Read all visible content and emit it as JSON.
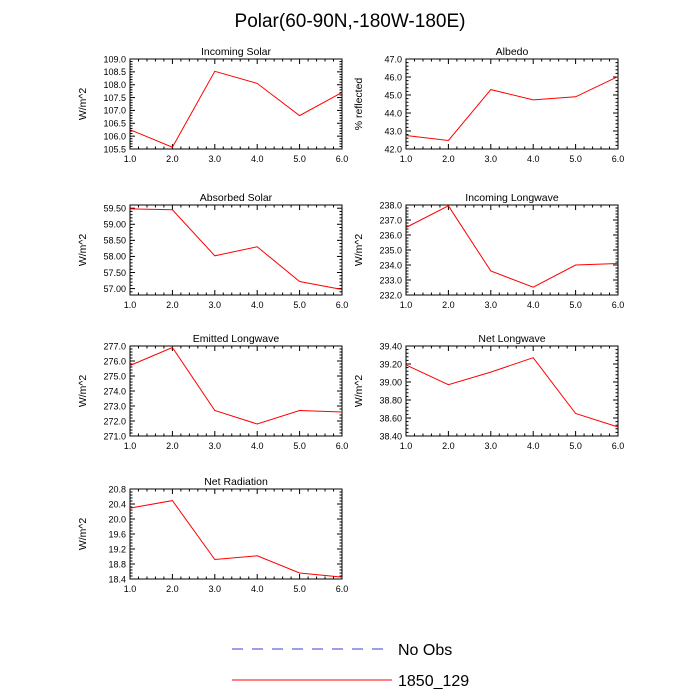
{
  "figure": {
    "title": "Polar(60-90N,-180W-180E)"
  },
  "legend": [
    {
      "label": "No Obs",
      "color": "#3b3bd6",
      "style": "dashed"
    },
    {
      "label": "1850_129",
      "color": "#ff0000",
      "style": "solid"
    }
  ],
  "chart_data": [
    {
      "type": "line",
      "title": "Incoming Solar",
      "ylabel": "W/m^2",
      "xlabel": "",
      "x": [
        1,
        2,
        3,
        4,
        5,
        6
      ],
      "xlim": [
        1,
        6
      ],
      "ylim": [
        105.5,
        109.0
      ],
      "xticks": [
        "1.0",
        "2.0",
        "3.0",
        "4.0",
        "5.0",
        "6.0"
      ],
      "yticks": [
        105.5,
        106.0,
        106.5,
        107.0,
        107.5,
        108.0,
        108.5,
        109.0
      ],
      "ytick_labels": [
        "105.5",
        "106.0",
        "106.5",
        "107.0",
        "107.5",
        "108.0",
        "108.5",
        "109.0"
      ],
      "series": [
        {
          "name": "1850_129",
          "color": "#ff0000",
          "values": [
            106.25,
            105.57,
            108.52,
            108.05,
            106.8,
            107.7
          ]
        }
      ]
    },
    {
      "type": "line",
      "title": "Albedo",
      "ylabel": "% reflected",
      "xlabel": "",
      "x": [
        1,
        2,
        3,
        4,
        5,
        6
      ],
      "xlim": [
        1,
        6
      ],
      "ylim": [
        42.0,
        47.0
      ],
      "xticks": [
        "1.0",
        "2.0",
        "3.0",
        "4.0",
        "5.0",
        "6.0"
      ],
      "yticks": [
        42.0,
        43.0,
        44.0,
        45.0,
        46.0,
        47.0
      ],
      "ytick_labels": [
        "42.0",
        "43.0",
        "44.0",
        "45.0",
        "46.0",
        "47.0"
      ],
      "series": [
        {
          "name": "1850_129",
          "color": "#ff0000",
          "values": [
            42.75,
            42.47,
            45.3,
            44.73,
            44.9,
            46.02
          ]
        }
      ]
    },
    {
      "type": "line",
      "title": "Absorbed Solar",
      "ylabel": "W/m^2",
      "xlabel": "",
      "x": [
        1,
        2,
        3,
        4,
        5,
        6
      ],
      "xlim": [
        1,
        6
      ],
      "ylim": [
        56.8,
        59.6
      ],
      "xticks": [
        "1.0",
        "2.0",
        "3.0",
        "4.0",
        "5.0",
        "6.0"
      ],
      "yticks": [
        57.0,
        57.5,
        58.0,
        58.5,
        59.0,
        59.5
      ],
      "ytick_labels": [
        "57.00",
        "57.50",
        "58.00",
        "58.50",
        "59.00",
        "59.50"
      ],
      "series": [
        {
          "name": "1850_129",
          "color": "#ff0000",
          "values": [
            59.48,
            59.45,
            58.02,
            58.3,
            57.22,
            56.97
          ]
        }
      ]
    },
    {
      "type": "line",
      "title": "Incoming Longwave",
      "ylabel": "W/m^2",
      "xlabel": "",
      "x": [
        1,
        2,
        3,
        4,
        5,
        6
      ],
      "xlim": [
        1,
        6
      ],
      "ylim": [
        232.0,
        238.0
      ],
      "xticks": [
        "1.0",
        "2.0",
        "3.0",
        "4.0",
        "5.0",
        "6.0"
      ],
      "yticks": [
        232.0,
        233.0,
        234.0,
        235.0,
        236.0,
        237.0,
        238.0
      ],
      "ytick_labels": [
        "232.0",
        "233.0",
        "234.0",
        "235.0",
        "236.0",
        "237.0",
        "238.0"
      ],
      "series": [
        {
          "name": "1850_129",
          "color": "#ff0000",
          "values": [
            236.5,
            237.95,
            233.6,
            232.52,
            234.0,
            234.1
          ]
        }
      ]
    },
    {
      "type": "line",
      "title": "Emitted Longwave",
      "ylabel": "W/m^2",
      "xlabel": "",
      "x": [
        1,
        2,
        3,
        4,
        5,
        6
      ],
      "xlim": [
        1,
        6
      ],
      "ylim": [
        271.0,
        277.0
      ],
      "xticks": [
        "1.0",
        "2.0",
        "3.0",
        "4.0",
        "5.0",
        "6.0"
      ],
      "yticks": [
        271.0,
        272.0,
        273.0,
        274.0,
        275.0,
        276.0,
        277.0
      ],
      "ytick_labels": [
        "271.0",
        "272.0",
        "273.0",
        "274.0",
        "275.0",
        "276.0",
        "277.0"
      ],
      "series": [
        {
          "name": "1850_129",
          "color": "#ff0000",
          "values": [
            275.7,
            276.9,
            272.7,
            271.8,
            272.7,
            272.6
          ]
        }
      ]
    },
    {
      "type": "line",
      "title": "Net Longwave",
      "ylabel": "W/m^2",
      "xlabel": "",
      "x": [
        1,
        2,
        3,
        4,
        5,
        6
      ],
      "xlim": [
        1,
        6
      ],
      "ylim": [
        38.4,
        39.4
      ],
      "xticks": [
        "1.0",
        "2.0",
        "3.0",
        "4.0",
        "5.0",
        "6.0"
      ],
      "yticks": [
        38.4,
        38.6,
        38.8,
        39.0,
        39.2,
        39.4
      ],
      "ytick_labels": [
        "38.40",
        "38.60",
        "38.80",
        "39.00",
        "39.20",
        "39.40"
      ],
      "series": [
        {
          "name": "1850_129",
          "color": "#ff0000",
          "values": [
            39.19,
            38.97,
            39.11,
            39.27,
            38.65,
            38.5
          ]
        }
      ]
    },
    {
      "type": "line",
      "title": "Net Radiation",
      "ylabel": "W/m^2",
      "xlabel": "",
      "x": [
        1,
        2,
        3,
        4,
        5,
        6
      ],
      "xlim": [
        1,
        6
      ],
      "ylim": [
        18.4,
        20.8
      ],
      "xticks": [
        "1.0",
        "2.0",
        "3.0",
        "4.0",
        "5.0",
        "6.0"
      ],
      "yticks": [
        18.4,
        18.8,
        19.2,
        19.6,
        20.0,
        20.4,
        20.8
      ],
      "ytick_labels": [
        "18.4",
        "18.8",
        "19.2",
        "19.6",
        "20.0",
        "20.4",
        "20.8"
      ],
      "series": [
        {
          "name": "1850_129",
          "color": "#ff0000",
          "values": [
            20.29,
            20.49,
            18.92,
            19.02,
            18.56,
            18.45
          ]
        }
      ]
    }
  ]
}
